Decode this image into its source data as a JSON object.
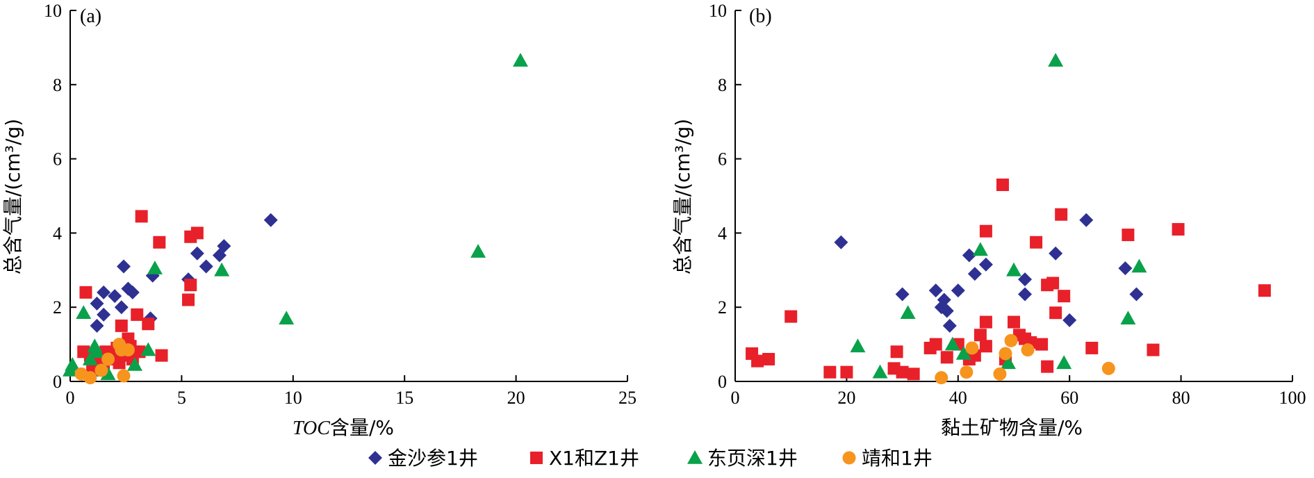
{
  "series_styles": [
    {
      "name": "金沙参1井",
      "marker": "diamond",
      "color": "#2e3192"
    },
    {
      "name": "X1和Z1井",
      "marker": "square",
      "color": "#e8202a"
    },
    {
      "name": "东页深1井",
      "marker": "triangle",
      "color": "#0aa14b"
    },
    {
      "name": "靖和1井",
      "marker": "circle",
      "color": "#f7941d"
    }
  ],
  "chart_data": [
    {
      "type": "scatter",
      "panel_label": "(a)",
      "xlabel_italic": "TOC",
      "xlabel_rest": "含量/%",
      "ylabel": "总含气量/(cm³/g)",
      "xlim": [
        0,
        25
      ],
      "ylim": [
        0,
        10
      ],
      "xticks": [
        0,
        5,
        10,
        15,
        20,
        25
      ],
      "yticks": [
        0,
        2,
        4,
        6,
        8,
        10
      ],
      "grid": false,
      "series": [
        {
          "name": "金沙参1井",
          "points": [
            [
              1.2,
              1.5
            ],
            [
              1.2,
              2.1
            ],
            [
              1.5,
              2.4
            ],
            [
              1.5,
              1.8
            ],
            [
              2.0,
              2.3
            ],
            [
              2.3,
              2.0
            ],
            [
              2.4,
              3.1
            ],
            [
              2.6,
              2.5
            ],
            [
              2.8,
              2.4
            ],
            [
              3.6,
              1.7
            ],
            [
              3.7,
              2.85
            ],
            [
              5.3,
              2.75
            ],
            [
              5.7,
              3.45
            ],
            [
              6.1,
              3.1
            ],
            [
              6.7,
              3.4
            ],
            [
              6.9,
              3.65
            ],
            [
              9.0,
              4.35
            ]
          ]
        },
        {
          "name": "X1和Z1井",
          "points": [
            [
              0.6,
              0.8
            ],
            [
              0.7,
              2.4
            ],
            [
              0.9,
              0.7
            ],
            [
              1.0,
              0.3
            ],
            [
              1.3,
              0.6
            ],
            [
              1.5,
              0.5
            ],
            [
              1.6,
              0.8
            ],
            [
              1.8,
              0.7
            ],
            [
              2.0,
              0.6
            ],
            [
              2.1,
              0.9
            ],
            [
              2.2,
              0.5
            ],
            [
              2.3,
              1.5
            ],
            [
              2.5,
              0.7
            ],
            [
              2.6,
              1.15
            ],
            [
              2.7,
              0.95
            ],
            [
              2.8,
              0.6
            ],
            [
              2.9,
              0.8
            ],
            [
              3.0,
              1.8
            ],
            [
              3.1,
              0.8
            ],
            [
              3.2,
              4.45
            ],
            [
              3.5,
              1.55
            ],
            [
              4.0,
              3.75
            ],
            [
              4.1,
              0.7
            ],
            [
              5.3,
              2.2
            ],
            [
              5.4,
              2.6
            ],
            [
              5.4,
              3.9
            ],
            [
              5.7,
              4.0
            ]
          ]
        },
        {
          "name": "东页深1井",
          "points": [
            [
              0.0,
              0.3
            ],
            [
              0.1,
              0.45
            ],
            [
              0.6,
              1.85
            ],
            [
              0.9,
              0.6
            ],
            [
              1.1,
              0.95
            ],
            [
              1.2,
              0.8
            ],
            [
              1.5,
              0.3
            ],
            [
              1.7,
              0.2
            ],
            [
              2.9,
              0.45
            ],
            [
              3.5,
              0.85
            ],
            [
              3.8,
              3.05
            ],
            [
              6.8,
              3.0
            ],
            [
              9.7,
              1.7
            ],
            [
              18.3,
              3.5
            ],
            [
              20.2,
              8.65
            ]
          ]
        },
        {
          "name": "靖和1井",
          "points": [
            [
              0.5,
              0.2
            ],
            [
              0.9,
              0.1
            ],
            [
              1.4,
              0.3
            ],
            [
              1.7,
              0.6
            ],
            [
              2.2,
              1.0
            ],
            [
              2.3,
              0.85
            ],
            [
              2.4,
              0.15
            ],
            [
              2.6,
              0.85
            ]
          ]
        }
      ]
    },
    {
      "type": "scatter",
      "panel_label": "(b)",
      "xlabel": "黏土矿物含量/%",
      "ylabel": "总含气量/(cm³/g)",
      "xlim": [
        0,
        100
      ],
      "ylim": [
        0,
        10
      ],
      "xticks": [
        0,
        20,
        40,
        60,
        80,
        100
      ],
      "yticks": [
        0,
        2,
        4,
        6,
        8,
        10
      ],
      "grid": false,
      "series": [
        {
          "name": "金沙参1井",
          "points": [
            [
              19,
              3.75
            ],
            [
              30,
              2.35
            ],
            [
              36,
              2.45
            ],
            [
              37,
              2.0
            ],
            [
              37.5,
              2.2
            ],
            [
              38,
              1.9
            ],
            [
              38.5,
              1.5
            ],
            [
              40,
              2.45
            ],
            [
              42,
              3.4
            ],
            [
              43,
              2.9
            ],
            [
              45,
              3.15
            ],
            [
              52,
              2.75
            ],
            [
              52,
              2.35
            ],
            [
              57.5,
              3.45
            ],
            [
              60,
              1.65
            ],
            [
              63,
              4.35
            ],
            [
              70,
              3.05
            ],
            [
              72,
              2.35
            ]
          ]
        },
        {
          "name": "X1和Z1井",
          "points": [
            [
              3,
              0.75
            ],
            [
              4,
              0.55
            ],
            [
              6,
              0.6
            ],
            [
              10,
              1.75
            ],
            [
              17,
              0.25
            ],
            [
              20,
              0.25
            ],
            [
              28.5,
              0.35
            ],
            [
              29,
              0.8
            ],
            [
              30,
              0.25
            ],
            [
              32,
              0.2
            ],
            [
              35,
              0.9
            ],
            [
              36,
              1.0
            ],
            [
              38,
              0.65
            ],
            [
              40,
              1.0
            ],
            [
              42,
              0.6
            ],
            [
              43,
              0.7
            ],
            [
              44,
              1.25
            ],
            [
              45,
              0.95
            ],
            [
              45,
              4.05
            ],
            [
              45,
              1.6
            ],
            [
              48,
              5.3
            ],
            [
              48.5,
              0.6
            ],
            [
              50,
              1.6
            ],
            [
              51,
              1.25
            ],
            [
              52,
              1.15
            ],
            [
              53,
              1.05
            ],
            [
              54,
              3.75
            ],
            [
              55,
              1.0
            ],
            [
              56,
              0.4
            ],
            [
              56,
              2.6
            ],
            [
              57,
              2.65
            ],
            [
              57.5,
              1.85
            ],
            [
              58.5,
              4.5
            ],
            [
              59,
              2.3
            ],
            [
              64,
              0.9
            ],
            [
              70.5,
              3.95
            ],
            [
              75,
              0.85
            ],
            [
              79.5,
              4.1
            ],
            [
              95,
              2.45
            ]
          ]
        },
        {
          "name": "东页深1井",
          "points": [
            [
              22,
              0.95
            ],
            [
              26,
              0.25
            ],
            [
              31,
              1.85
            ],
            [
              39,
              1.0
            ],
            [
              41,
              0.75
            ],
            [
              44,
              3.55
            ],
            [
              49,
              0.5
            ],
            [
              50,
              3.0
            ],
            [
              57.5,
              8.65
            ],
            [
              59,
              0.5
            ],
            [
              70.5,
              1.7
            ],
            [
              72.5,
              3.1
            ]
          ]
        },
        {
          "name": "靖和1井",
          "points": [
            [
              37,
              0.1
            ],
            [
              41.5,
              0.25
            ],
            [
              42.5,
              0.9
            ],
            [
              47.5,
              0.2
            ],
            [
              48.5,
              0.75
            ],
            [
              49.5,
              1.1
            ],
            [
              52.5,
              0.85
            ],
            [
              67,
              0.35
            ]
          ]
        }
      ]
    }
  ]
}
